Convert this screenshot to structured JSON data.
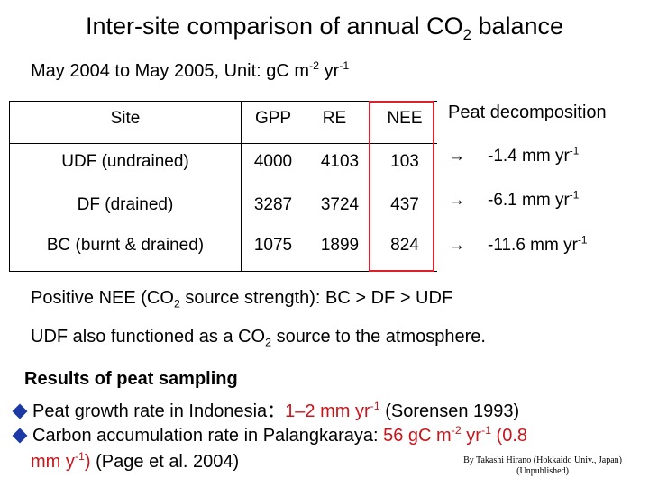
{
  "title": {
    "prefix": "Inter-site comparison of annual CO",
    "sub": "2",
    "suffix": " balance"
  },
  "subtitle": {
    "text": "May 2004 to May 2005, Unit: g",
    "unit_base": "C m",
    "unit_exp1": "-2",
    "unit_mid": " yr",
    "unit_exp2": "-1"
  },
  "table": {
    "headers": {
      "site": "Site",
      "gpp": "GPP",
      "re": "RE",
      "nee": "NEE"
    },
    "rows": [
      {
        "site": "UDF (undrained)",
        "gpp": "4000",
        "re": "4103",
        "nee": "103"
      },
      {
        "site": "DF (drained)",
        "gpp": "3287",
        "re": "3724",
        "nee": "437"
      },
      {
        "site": "BC (burnt & drained)",
        "gpp": "1075",
        "re": "1899",
        "nee": "824"
      }
    ]
  },
  "peat": {
    "heading": "Peat decomposition",
    "arrow": "→",
    "unit": " mm yr",
    "unit_exp": "-1",
    "values": [
      "-1.4",
      "-6.1",
      "-11.6"
    ]
  },
  "statements": {
    "line1": {
      "prefix": "Positive NEE (CO",
      "sub": "2",
      "suffix": " source strength): BC > DF > UDF"
    },
    "line2": {
      "prefix": "UDF also functioned as a CO",
      "sub": "2",
      "suffix": " source to the atmosphere."
    }
  },
  "results": {
    "title": "Results of peat sampling",
    "bullet1": {
      "text": "Peat growth rate in Indonesia：",
      "value": "1–2 mm yr",
      "value_exp": "-1",
      "ref": " (Sorensen 1993)"
    },
    "bullet2": {
      "text": "Carbon accumulation rate in Palangkaraya: ",
      "value": "56 gC m",
      "exp1": "-2",
      "mid": " yr",
      "exp2": "-1",
      "paren_open": " (0.8",
      "line2_value": "mm y",
      "line2_exp": "-1",
      "line2_close": ")",
      "ref": " (Page et al. 2004)"
    }
  },
  "credit": {
    "line1": "By Takashi Hirano (Hokkaido Univ., Japan)",
    "line2": "(Unpublished)"
  },
  "colors": {
    "nee_box": "#e0202a",
    "highlight_red": "#c8151b",
    "bullet_blue": "#1c3aa6"
  }
}
